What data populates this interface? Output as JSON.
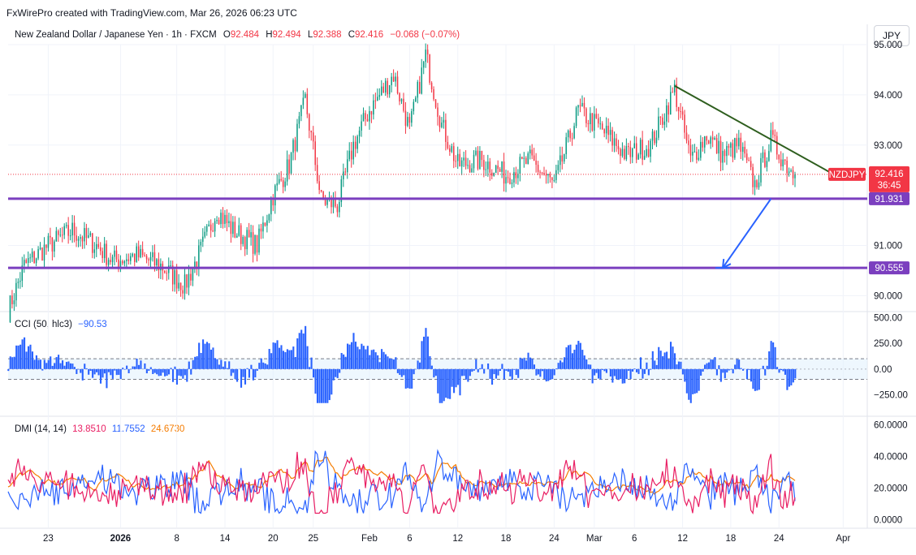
{
  "header": {
    "credit": "FxWirePro created with TradingView.com, Mar 26, 2026 06:23 UTC"
  },
  "legend": {
    "symbol": "New Zealand Dollar / Japanese Yen · 1h · FXCM",
    "o_label": "O",
    "o": "92.484",
    "h_label": "H",
    "h": "92.494",
    "l_label": "L",
    "l": "92.388",
    "c_label": "C",
    "c": "92.416",
    "change": "−0.068 (−0.07%)"
  },
  "currency_button": "JPY",
  "colors": {
    "up": "#089981",
    "down": "#f23645",
    "support": "#7b3fbf",
    "trend": "#2e5e1e",
    "arrow": "#2962ff",
    "cci": "#2962ff",
    "dmi_plus": "#e91e63",
    "dmi_minus": "#2962ff",
    "adx": "#f57c00"
  },
  "chart_data": [
    {
      "type": "candlestick",
      "symbol_tag": "NZDJPY",
      "last_price": "92.416",
      "countdown": "36:45",
      "ylim": [
        89.7,
        95.0
      ],
      "y_ticks": [
        "90.000",
        "91.000",
        "93.000",
        "94.000",
        "95.000"
      ],
      "x_ticks": [
        "23",
        "2026",
        "8",
        "14",
        "20",
        "25",
        "Feb",
        "6",
        "12",
        "18",
        "24",
        "Mar",
        "6",
        "12",
        "18",
        "24",
        "Apr"
      ],
      "x_tick_dates": [
        "2025-12-23",
        "2026-01-01",
        "2026-01-08",
        "2026-01-14",
        "2026-01-20",
        "2026-01-25",
        "2026-02-01",
        "2026-02-06",
        "2026-02-12",
        "2026-02-18",
        "2026-02-24",
        "2026-03-01",
        "2026-03-06",
        "2026-03-12",
        "2026-03-18",
        "2026-03-24",
        "2026-04-01"
      ],
      "anchors": [
        [
          "2025-12-18",
          89.7
        ],
        [
          "2025-12-20",
          90.6
        ],
        [
          "2025-12-23",
          91.0
        ],
        [
          "2025-12-26",
          91.3
        ],
        [
          "2025-12-29",
          91.0
        ],
        [
          "2025-12-31",
          90.7
        ],
        [
          "2026-01-03",
          90.8
        ],
        [
          "2026-01-06",
          90.6
        ],
        [
          "2026-01-09",
          90.2
        ],
        [
          "2026-01-11",
          90.9
        ],
        [
          "2026-01-13",
          91.7
        ],
        [
          "2026-01-15",
          91.3
        ],
        [
          "2026-01-18",
          91.0
        ],
        [
          "2026-01-20",
          92.0
        ],
        [
          "2026-01-22",
          92.6
        ],
        [
          "2026-01-24",
          93.9
        ],
        [
          "2026-01-26",
          91.9
        ],
        [
          "2026-01-28",
          91.8
        ],
        [
          "2026-01-30",
          93.0
        ],
        [
          "2026-02-01",
          93.7
        ],
        [
          "2026-02-04",
          94.4
        ],
        [
          "2026-02-06",
          93.3
        ],
        [
          "2026-02-08",
          94.8
        ],
        [
          "2026-02-10",
          93.4
        ],
        [
          "2026-02-12",
          92.6
        ],
        [
          "2026-02-15",
          92.7
        ],
        [
          "2026-02-18",
          92.4
        ],
        [
          "2026-02-21",
          92.7
        ],
        [
          "2026-02-24",
          92.2
        ],
        [
          "2026-02-27",
          93.7
        ],
        [
          "2026-03-02",
          93.3
        ],
        [
          "2026-03-05",
          92.8
        ],
        [
          "2026-03-08",
          93.0
        ],
        [
          "2026-03-11",
          94.1
        ],
        [
          "2026-03-13",
          92.7
        ],
        [
          "2026-03-15",
          93.2
        ],
        [
          "2026-03-17",
          92.8
        ],
        [
          "2026-03-19",
          93.0
        ],
        [
          "2026-03-21",
          92.2
        ],
        [
          "2026-03-23",
          93.1
        ],
        [
          "2026-03-25",
          92.6
        ],
        [
          "2026-03-26",
          92.416
        ]
      ],
      "horizontal_levels": [
        {
          "price": "91.931",
          "value": 91.931
        },
        {
          "price": "90.555",
          "value": 90.555
        }
      ],
      "trendline": {
        "from": [
          "2026-03-11",
          94.18
        ],
        "to": [
          "2026-03-31",
          92.4
        ]
      },
      "arrow": {
        "from": [
          "2026-03-23",
          91.93
        ],
        "to": [
          "2026-03-17",
          90.555
        ]
      }
    },
    {
      "type": "histogram",
      "name": "CCI (50, hlc3)",
      "last_value": "−90.53",
      "ylim": [
        -450,
        550
      ],
      "y_ticks": [
        "500.00",
        "250.00",
        "0.00",
        "−250.00"
      ],
      "bands": [
        100,
        -100
      ]
    },
    {
      "type": "line",
      "name": "DMI (14, 14)",
      "values_label": [
        "13.8510",
        "11.7552",
        "24.6730"
      ],
      "ylim": [
        -5,
        65
      ],
      "y_ticks": [
        "60.0000",
        "40.0000",
        "20.0000",
        "0.0000"
      ],
      "series": [
        {
          "name": "+DI",
          "last": 13.851
        },
        {
          "name": "−DI",
          "last": 11.7552
        },
        {
          "name": "ADX",
          "last": 24.673
        }
      ]
    }
  ]
}
